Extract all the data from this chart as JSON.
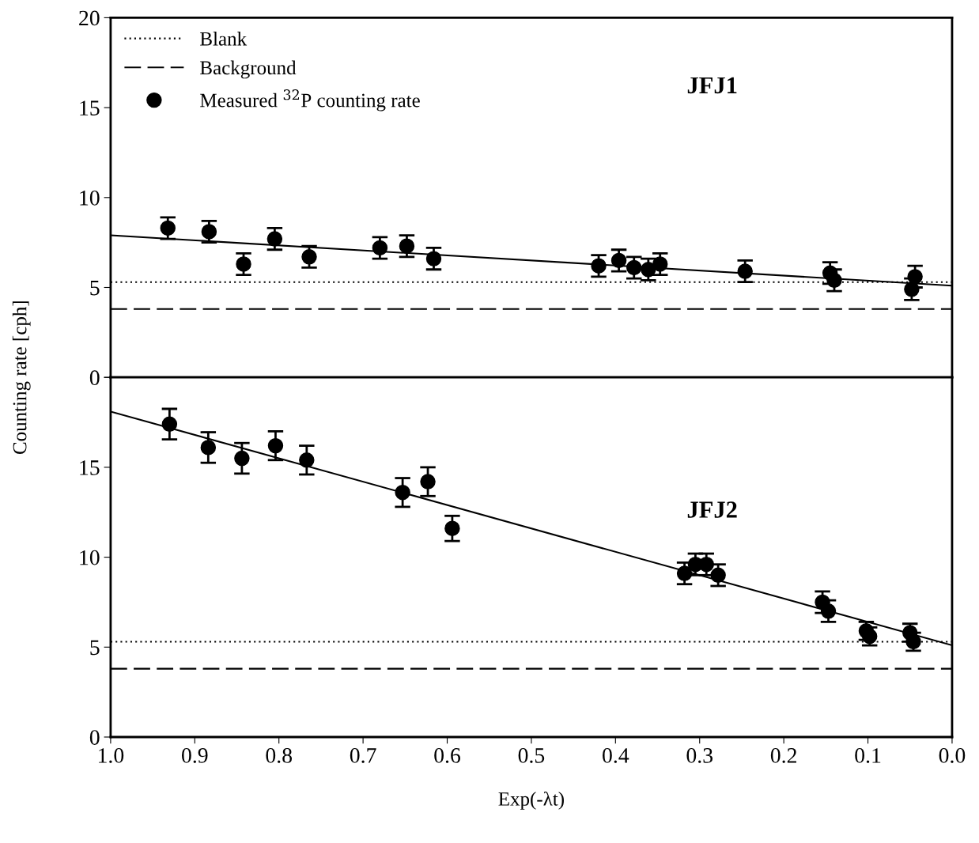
{
  "chart_data": [
    {
      "type": "scatter",
      "ylabel": "Counting rate [cph]",
      "annotations": [
        "JFJ1"
      ],
      "xlim": [
        1.0,
        0.0
      ],
      "ylim": [
        0,
        20
      ],
      "yticks": [
        0,
        5,
        10,
        15,
        20
      ],
      "tick_labels": "y",
      "legend": "top left",
      "grid": false,
      "series": [
        {
          "name": "Measured $^{32}$P counting rate",
          "marker": "circle",
          "color": "#000000",
          "x": [
            0.932,
            0.883,
            0.842,
            0.805,
            0.764,
            0.68,
            0.648,
            0.616,
            0.42,
            0.396,
            0.378,
            0.361,
            0.347,
            0.246,
            0.145,
            0.14,
            0.048,
            0.044
          ],
          "values": [
            8.3,
            8.1,
            6.3,
            7.7,
            6.7,
            7.2,
            7.3,
            6.6,
            6.2,
            6.5,
            6.1,
            6.0,
            6.3,
            5.9,
            5.8,
            5.4,
            4.9,
            5.6
          ],
          "errors": [
            0.6,
            0.6,
            0.6,
            0.6,
            0.6,
            0.6,
            0.6,
            0.6,
            0.6,
            0.6,
            0.6,
            0.6,
            0.6,
            0.6,
            0.6,
            0.6,
            0.6,
            0.6
          ]
        },
        {
          "type": "line",
          "color": "#000000",
          "x": [
            1.0,
            0.0
          ],
          "values": [
            7.9,
            5.1
          ]
        }
      ],
      "ref_lines": [
        {
          "axis": "y",
          "value": 5.3,
          "label": "Blank",
          "color": "#000000",
          "line_style": "dotted"
        },
        {
          "axis": "y",
          "value": 3.8,
          "label": "Background",
          "color": "#000000",
          "line_style": "dashed"
        }
      ]
    },
    {
      "type": "scatter",
      "xlabel": "Exp(-λt)",
      "annotations": [
        "JFJ2"
      ],
      "xlim": [
        1.0,
        0.0
      ],
      "xticks": [
        {
          "value": 1.0,
          "label": "1.0"
        },
        0.9,
        0.8,
        0.7,
        0.6,
        0.5,
        0.4,
        0.3,
        0.2,
        0.1,
        {
          "value": 0.0,
          "label": "0.0"
        }
      ],
      "ylim": [
        0,
        20
      ],
      "yticks": [
        0,
        5,
        10,
        15,
        {
          "value": 20,
          "label": null
        }
      ],
      "legend": false,
      "grid": false,
      "series": [
        {
          "marker": "circle",
          "color": "#000000",
          "x": [
            0.93,
            0.884,
            0.844,
            0.804,
            0.767,
            0.653,
            0.623,
            0.594,
            0.318,
            0.305,
            0.292,
            0.278,
            0.154,
            0.147,
            0.102,
            0.098,
            0.05,
            0.046
          ],
          "values": [
            17.4,
            16.1,
            15.5,
            16.2,
            15.4,
            13.6,
            14.2,
            11.6,
            9.1,
            9.6,
            9.6,
            9.0,
            7.5,
            7.0,
            5.9,
            5.6,
            5.8,
            5.3
          ],
          "errors": [
            0.85,
            0.85,
            0.85,
            0.8,
            0.8,
            0.8,
            0.8,
            0.7,
            0.6,
            0.6,
            0.6,
            0.6,
            0.6,
            0.6,
            0.5,
            0.5,
            0.5,
            0.5
          ]
        },
        {
          "type": "line",
          "color": "#000000",
          "x": [
            1.0,
            0.0
          ],
          "values": [
            18.1,
            5.1
          ]
        }
      ],
      "ref_lines": [
        {
          "axis": "y",
          "value": 5.3,
          "color": "#000000",
          "line_style": "dotted"
        },
        {
          "axis": "y",
          "value": 3.8,
          "color": "#000000",
          "line_style": "dashed"
        }
      ]
    }
  ]
}
